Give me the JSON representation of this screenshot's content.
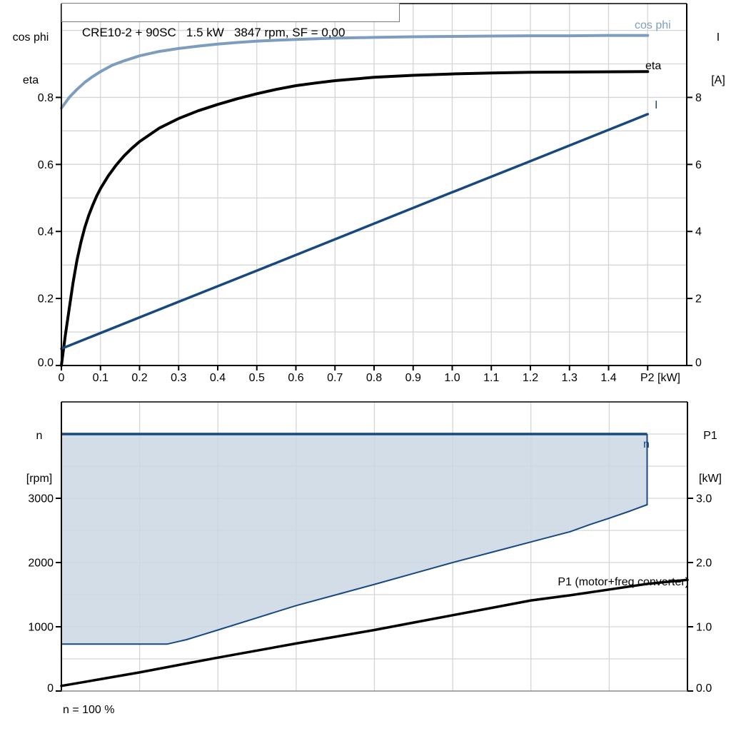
{
  "title_box": {
    "text": "CRE10-2 + 90SC   1.5 kW   3847 rpm, SF = 0,00"
  },
  "labels": {
    "top_left_line1": "cos phi",
    "top_left_line2": "eta",
    "top_right_line1": "I",
    "top_right_line2": "[A]",
    "bottom_left_line1": "n",
    "bottom_left_line2": "[rpm]",
    "bottom_right_line1": "P1",
    "bottom_right_line2": "[kW]",
    "curve_cos_phi": "cos phi",
    "curve_eta": "eta",
    "curve_I": "I",
    "curve_n": "n",
    "curve_P1": "P1 (motor+freq converter)",
    "note": "n = 100 %"
  },
  "colors": {
    "black": "#000000",
    "dark_blue": "#17497E",
    "light_blue": "#7D9DBF",
    "region_fill": "#CBD7E4",
    "grid": "#D5D5D5",
    "frame": "#000000",
    "bottom_axis_gray": "#8C8C8C"
  },
  "chart_data": [
    {
      "type": "line",
      "title": "CRE10-2 + 90SC  1.5 kW  3847 rpm, SF = 0,00",
      "xlabel": "P2 [kW]",
      "x_range": [
        0,
        1.6
      ],
      "x_grid_step": 0.1,
      "x_tick_step": 0.1,
      "x_tick_labels": [
        "0",
        "0.1",
        "0.2",
        "0.3",
        "0.4",
        "0.5",
        "0.6",
        "0.7",
        "0.8",
        "0.9",
        "1.0",
        "1.1",
        "1.2",
        "1.3",
        "1.4"
      ],
      "left_axis": {
        "label": "cos phi / eta",
        "range": [
          0,
          1.08
        ],
        "grid_step": 0.1,
        "ticks": [
          {
            "v": 0.0,
            "label": "0.0"
          },
          {
            "v": 0.2,
            "label": "0.2"
          },
          {
            "v": 0.4,
            "label": "0.4"
          },
          {
            "v": 0.6,
            "label": "0.6"
          },
          {
            "v": 0.8,
            "label": "0.8"
          }
        ]
      },
      "right_axis": {
        "label": "I [A]",
        "range": [
          0,
          10.8
        ],
        "ticks": [
          {
            "v": 0,
            "label": "0"
          },
          {
            "v": 2,
            "label": "2"
          },
          {
            "v": 4,
            "label": "4"
          },
          {
            "v": 6,
            "label": "6"
          },
          {
            "v": 8,
            "label": "8"
          }
        ]
      },
      "series": [
        {
          "name": "cos phi",
          "axis": "left",
          "color": "#7D9DBF",
          "width": 4,
          "points": [
            [
              0,
              0.768
            ],
            [
              0.02,
              0.8
            ],
            [
              0.04,
              0.824
            ],
            [
              0.06,
              0.845
            ],
            [
              0.08,
              0.862
            ],
            [
              0.1,
              0.877
            ],
            [
              0.13,
              0.896
            ],
            [
              0.16,
              0.909
            ],
            [
              0.2,
              0.924
            ],
            [
              0.25,
              0.937
            ],
            [
              0.3,
              0.946
            ],
            [
              0.35,
              0.953
            ],
            [
              0.4,
              0.959
            ],
            [
              0.45,
              0.964
            ],
            [
              0.5,
              0.968
            ],
            [
              0.6,
              0.973
            ],
            [
              0.7,
              0.977
            ],
            [
              0.8,
              0.979
            ],
            [
              0.9,
              0.981
            ],
            [
              1.0,
              0.982
            ],
            [
              1.1,
              0.983
            ],
            [
              1.2,
              0.984
            ],
            [
              1.3,
              0.984
            ],
            [
              1.4,
              0.985
            ],
            [
              1.5,
              0.985
            ]
          ]
        },
        {
          "name": "eta",
          "axis": "left",
          "color": "#000000",
          "width": 4,
          "points": [
            [
              0,
              0
            ],
            [
              0.01,
              0.09
            ],
            [
              0.02,
              0.17
            ],
            [
              0.03,
              0.248
            ],
            [
              0.04,
              0.315
            ],
            [
              0.05,
              0.368
            ],
            [
              0.06,
              0.412
            ],
            [
              0.07,
              0.448
            ],
            [
              0.08,
              0.478
            ],
            [
              0.09,
              0.505
            ],
            [
              0.1,
              0.528
            ],
            [
              0.12,
              0.566
            ],
            [
              0.14,
              0.598
            ],
            [
              0.16,
              0.625
            ],
            [
              0.18,
              0.648
            ],
            [
              0.2,
              0.668
            ],
            [
              0.25,
              0.708
            ],
            [
              0.3,
              0.737
            ],
            [
              0.35,
              0.76
            ],
            [
              0.4,
              0.779
            ],
            [
              0.45,
              0.796
            ],
            [
              0.5,
              0.811
            ],
            [
              0.55,
              0.824
            ],
            [
              0.6,
              0.835
            ],
            [
              0.65,
              0.843
            ],
            [
              0.7,
              0.85
            ],
            [
              0.8,
              0.86
            ],
            [
              0.9,
              0.866
            ],
            [
              1.0,
              0.87
            ],
            [
              1.1,
              0.873
            ],
            [
              1.2,
              0.875
            ],
            [
              1.35,
              0.876
            ],
            [
              1.5,
              0.877
            ]
          ]
        },
        {
          "name": "I",
          "axis": "right",
          "color": "#17497E",
          "width": 3.5,
          "points": [
            [
              0,
              0.5
            ],
            [
              0.25,
              1.67
            ],
            [
              0.5,
              2.83
            ],
            [
              0.75,
              4.0
            ],
            [
              1.0,
              5.17
            ],
            [
              1.25,
              6.33
            ],
            [
              1.5,
              7.5
            ]
          ]
        }
      ]
    },
    {
      "type": "area",
      "xlabel": "P2 [kW]",
      "x_range": [
        0,
        1.6
      ],
      "x_grid_step": 0.2,
      "left_axis": {
        "label": "n [rpm]",
        "range": [
          0,
          4500
        ],
        "grid_step": 500,
        "ticks": [
          {
            "v": 0,
            "label": "0"
          },
          {
            "v": 1000,
            "label": "1000"
          },
          {
            "v": 2000,
            "label": "2000"
          },
          {
            "v": 3000,
            "label": "3000"
          }
        ]
      },
      "right_axis": {
        "label": "P1 [kW]",
        "range": [
          0,
          4.5
        ],
        "ticks": [
          {
            "v": 0,
            "label": "0.0"
          },
          {
            "v": 1,
            "label": "1.0"
          },
          {
            "v": 2,
            "label": "2.0"
          },
          {
            "v": 3,
            "label": "3.0"
          }
        ]
      },
      "region": {
        "name": "n",
        "note": "n = 100 %",
        "axis": "left",
        "line_color": "#17497E",
        "fill_color": "#CBD7E4",
        "fill_opacity": 0.85,
        "top_value": 4000,
        "x_start": 0,
        "x_end": 1.497,
        "lower_boundary": [
          [
            0,
            730
          ],
          [
            0.27,
            730
          ],
          [
            0.32,
            800
          ],
          [
            0.4,
            950
          ],
          [
            0.5,
            1140
          ],
          [
            0.6,
            1330
          ],
          [
            0.7,
            1495
          ],
          [
            0.8,
            1660
          ],
          [
            0.9,
            1830
          ],
          [
            1.0,
            2000
          ],
          [
            1.1,
            2160
          ],
          [
            1.2,
            2320
          ],
          [
            1.3,
            2480
          ],
          [
            1.35,
            2590
          ],
          [
            1.4,
            2690
          ],
          [
            1.45,
            2795
          ],
          [
            1.497,
            2900
          ]
        ]
      },
      "series": [
        {
          "name": "P1 (motor+freq converter)",
          "axis": "right",
          "color": "#000000",
          "width": 3.5,
          "points": [
            [
              0,
              0.08
            ],
            [
              0.1,
              0.185
            ],
            [
              0.2,
              0.29
            ],
            [
              0.3,
              0.405
            ],
            [
              0.4,
              0.52
            ],
            [
              0.5,
              0.63
            ],
            [
              0.6,
              0.74
            ],
            [
              0.7,
              0.845
            ],
            [
              0.8,
              0.95
            ],
            [
              0.9,
              1.065
            ],
            [
              1.0,
              1.18
            ],
            [
              1.1,
              1.295
            ],
            [
              1.2,
              1.41
            ],
            [
              1.3,
              1.49
            ],
            [
              1.4,
              1.58
            ],
            [
              1.5,
              1.67
            ],
            [
              1.6,
              1.73
            ]
          ]
        }
      ]
    }
  ]
}
